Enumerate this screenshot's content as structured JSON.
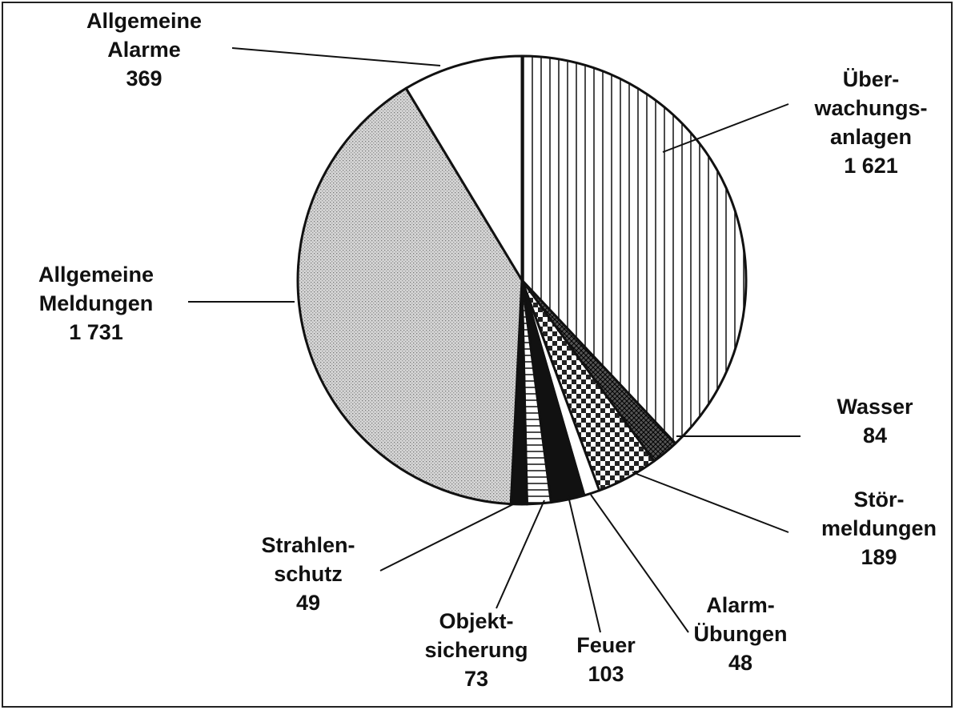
{
  "chart_data": {
    "type": "pie",
    "categories": [
      [
        "Über-",
        "wachungs-",
        "anlagen"
      ],
      [
        "Wasser"
      ],
      [
        "Stör-",
        "meldungen"
      ],
      [
        "Alarm-",
        "Übungen"
      ],
      [
        "Feuer"
      ],
      [
        "Objekt-",
        "sicherung"
      ],
      [
        "Strahlen-",
        "schutz"
      ],
      [
        "Allgemeine",
        "Meldungen"
      ],
      [
        "Allgemeine",
        "Alarme"
      ]
    ],
    "values": [
      1621,
      84,
      189,
      48,
      103,
      73,
      49,
      1731,
      369
    ],
    "value_labels": [
      "1 621",
      "84",
      "189",
      "48",
      "103",
      "73",
      "49",
      "1 731",
      "369"
    ],
    "colors": [
      "#ffffff",
      "#555555",
      "#ffffff",
      "#ffffff",
      "#111111",
      "#ffffff",
      "#111111",
      "#cfcfcf",
      "#ffffff"
    ]
  }
}
